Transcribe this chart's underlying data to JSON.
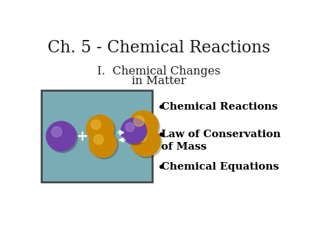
{
  "title": "Ch. 5 - Chemical Reactions",
  "subtitle_line1": "I.  Chemical Changes",
  "subtitle_line2": "in Matter",
  "bullet_points": [
    "Chemical Reactions",
    "Law of Conservation\nof Mass",
    "Chemical Equations"
  ],
  "bg_color": "#ffffff",
  "title_color": "#1a1a1a",
  "subtitle_color": "#1a1a1a",
  "bullet_color": "#000000",
  "title_fontsize": 17,
  "subtitle_fontsize": 12,
  "bullet_fontsize": 11,
  "image_bg_color": "#7aacb5",
  "sphere_purple_color": "#7040a8",
  "sphere_gold_color": "#cc8800",
  "sphere_gold_light": "#e8a820"
}
